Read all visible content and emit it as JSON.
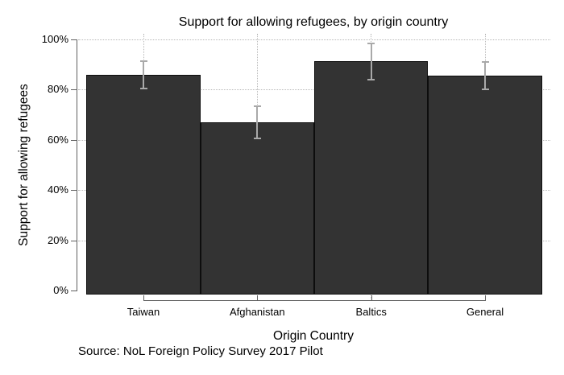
{
  "chart_data": {
    "type": "bar",
    "title": "Support for allowing refugees, by origin country",
    "xlabel": "Origin Country",
    "ylabel": "Support for allowing refugees",
    "source_note": "Source: NoL Foreign Policy Survey 2017 Pilot",
    "categories": [
      "Taiwan",
      "Afghanistan",
      "Baltics",
      "General"
    ],
    "values": [
      86,
      67,
      91.5,
      85.5
    ],
    "error_low": [
      80.5,
      60.5,
      84,
      80
    ],
    "error_high": [
      91.5,
      73.5,
      98.5,
      91
    ],
    "ylim": [
      0,
      100
    ],
    "yticks": [
      0,
      20,
      40,
      60,
      80,
      100
    ],
    "ytick_labels": [
      "0%",
      "20%",
      "40%",
      "60%",
      "80%",
      "100%"
    ],
    "grid": true,
    "legend": "none",
    "bar_color": "#333333",
    "bar_border_color": "#0d0d0d",
    "error_color": "#a9a9a9",
    "gridline_color": "#b8b8b8",
    "axis_color": "#606060",
    "text_color": "#000000",
    "background_color": "#ffffff"
  }
}
